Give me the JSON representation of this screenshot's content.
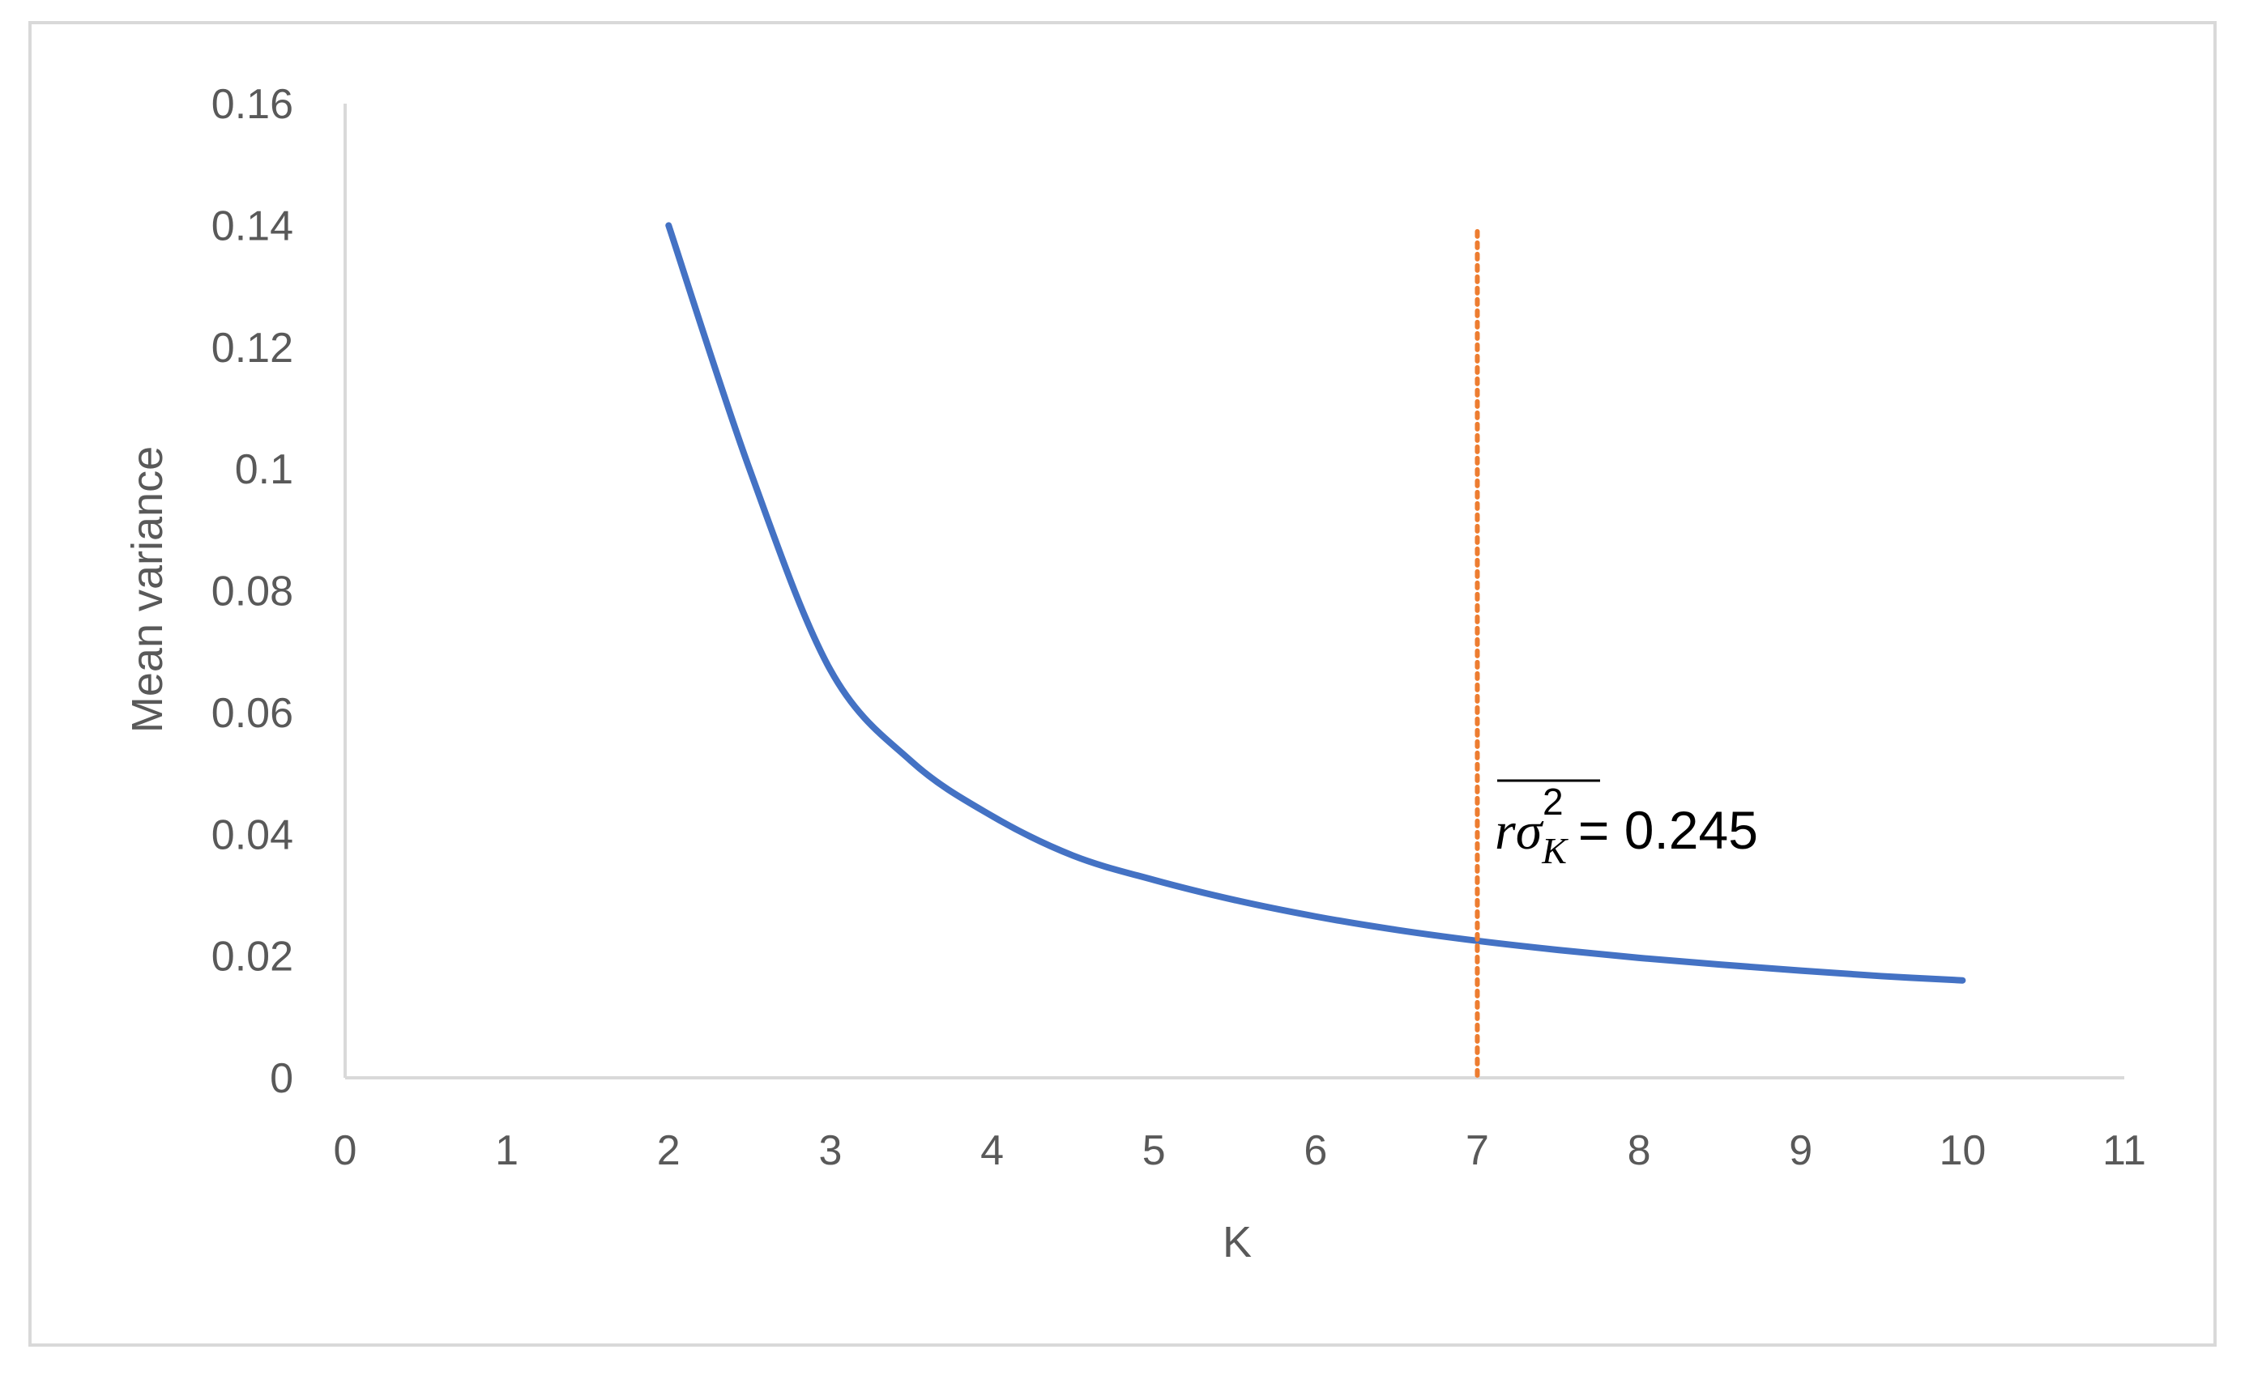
{
  "chart_data": {
    "type": "line",
    "title": "",
    "xlabel": "K",
    "ylabel": "Mean variance",
    "xlim": [
      0,
      11
    ],
    "ylim": [
      0,
      0.16
    ],
    "x_ticks": [
      "0",
      "1",
      "2",
      "3",
      "4",
      "5",
      "6",
      "7",
      "8",
      "9",
      "10",
      "11"
    ],
    "y_ticks": [
      "0",
      "0.02",
      "0.04",
      "0.06",
      "0.08",
      "0.1",
      "0.12",
      "0.14",
      "0.16"
    ],
    "grid": false,
    "legend": "none",
    "series": [
      {
        "x": [
          2,
          2.5,
          3,
          3.5,
          4,
          4.5,
          5,
          5.5,
          6,
          6.5,
          7,
          7.5,
          8,
          8.5,
          9,
          9.5,
          10
        ],
        "y": [
          0.14,
          0.1,
          0.067,
          0.052,
          0.043,
          0.0365,
          0.0325,
          0.0292,
          0.0265,
          0.0243,
          0.0225,
          0.021,
          0.0197,
          0.0186,
          0.0176,
          0.0167,
          0.016
        ],
        "color": "#4472C4"
      }
    ],
    "reference_line": {
      "x": 7,
      "y_top": 0.139,
      "color": "#ED7D31",
      "style": "dotted"
    },
    "annotation": {
      "symbol_r": "r",
      "symbol_sigma": "σ",
      "subscript": "K",
      "superscript": "2",
      "value_text": " = 0.245"
    }
  }
}
